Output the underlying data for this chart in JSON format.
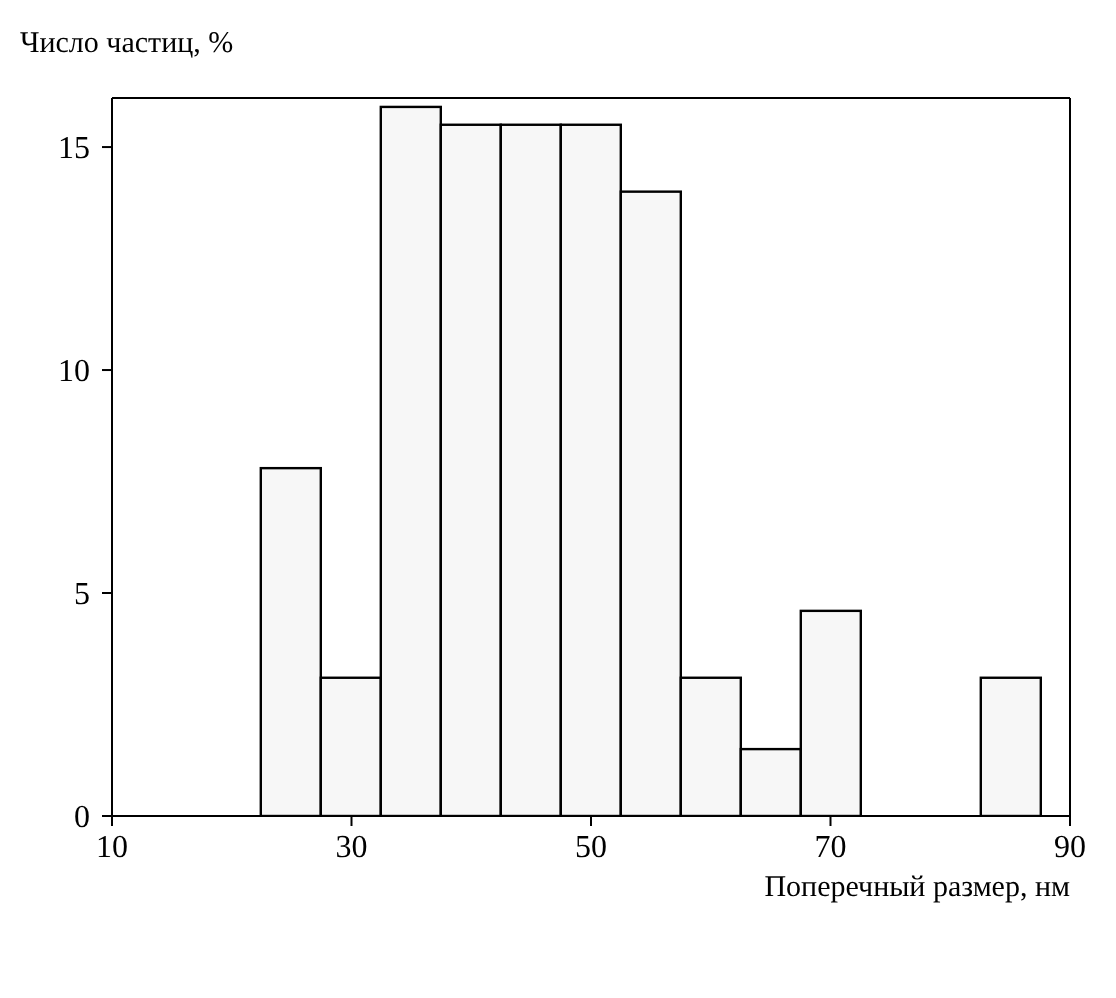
{
  "chart_data": {
    "type": "histogram",
    "xlabel": "Поперечный размер, нм",
    "ylabel": "Число частиц, %",
    "bins": [
      22.4,
      27.4,
      32.4,
      37.4,
      42.4,
      47.4,
      52.4,
      57.4,
      62.4,
      67.4,
      72.4,
      77.4,
      82.4,
      87.4
    ],
    "values": [
      7.8,
      3.1,
      15.9,
      15.5,
      15.5,
      15.5,
      14.0,
      3.1,
      1.5,
      4.6,
      0,
      0,
      3.1
    ],
    "color": "#f7f7f7",
    "xlim": [
      10,
      90
    ],
    "xticks": [
      10,
      30,
      50,
      70,
      90
    ],
    "ylim": [
      0,
      16.1
    ],
    "yticks": [
      0,
      5,
      10,
      15
    ],
    "grid": false,
    "legend": false
  }
}
